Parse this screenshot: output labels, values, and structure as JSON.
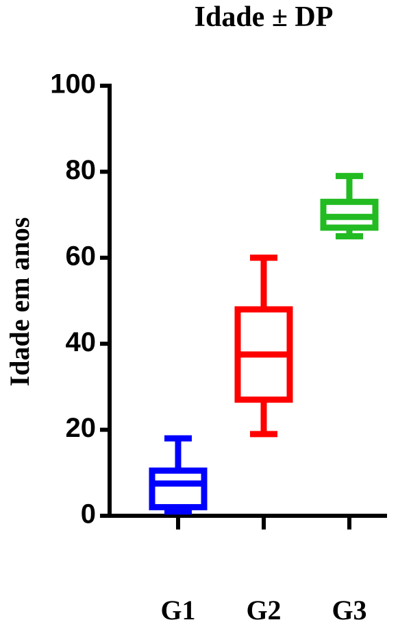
{
  "chart_data": {
    "type": "box",
    "title": "Idade ± DP",
    "y_label": "Idade em anos",
    "categories": [
      "G1",
      "G2",
      "G3"
    ],
    "colors": [
      "#0000ff",
      "#ff0000",
      "#22bb22"
    ],
    "boxes": [
      {
        "min": 1,
        "q1": 2,
        "median": 7.5,
        "q3": 10.5,
        "max": 18
      },
      {
        "min": 19,
        "q1": 27,
        "median": 37.5,
        "q3": 48,
        "max": 60
      },
      {
        "min": 65,
        "q1": 67,
        "median": 69.5,
        "q3": 73,
        "max": 79
      }
    ],
    "ylim": [
      0,
      100
    ],
    "yticks": [
      0,
      20,
      40,
      60,
      80,
      100
    ]
  }
}
